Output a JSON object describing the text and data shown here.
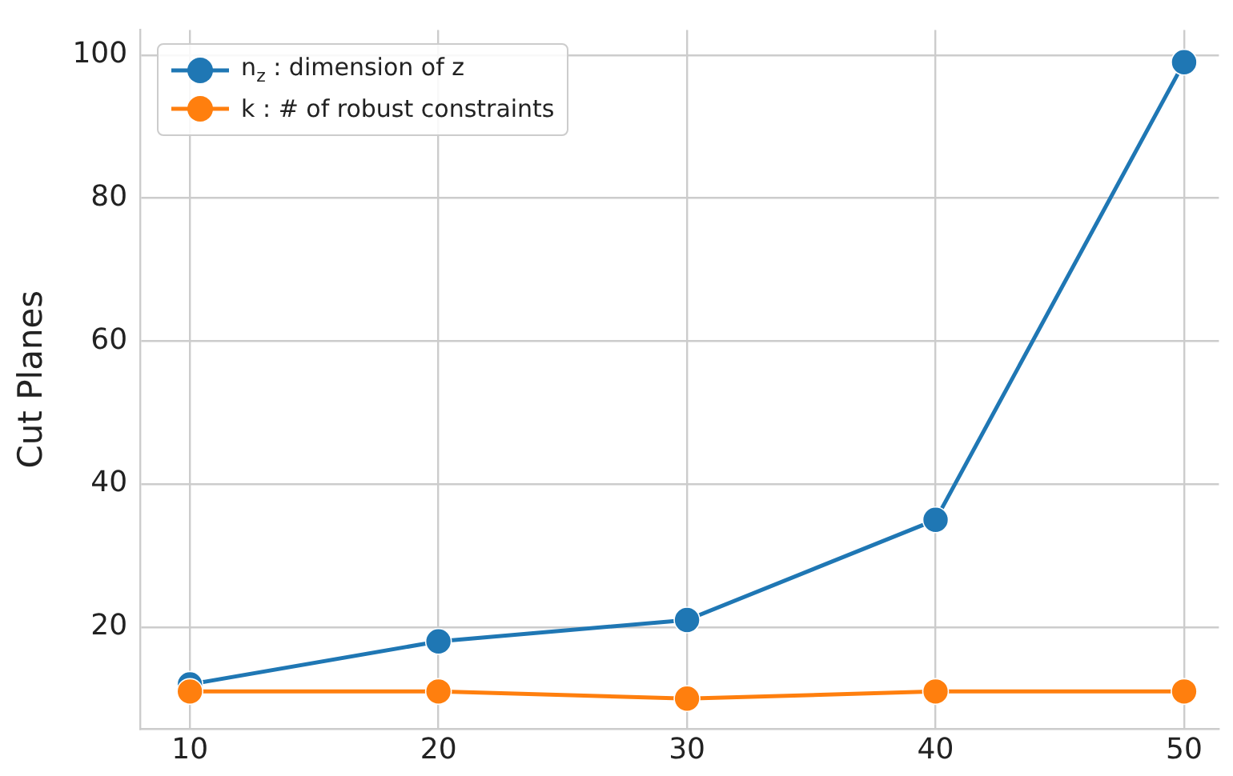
{
  "chart_data": {
    "type": "line",
    "ylabel": "Cut Planes",
    "x": [
      10,
      20,
      30,
      40,
      50
    ],
    "series": [
      {
        "name": "n$_{z}$ :  dimension of z",
        "color": "#1f77b4",
        "values": [
          12,
          18,
          21,
          35,
          99
        ]
      },
      {
        "name": "k :  # of robust constraints",
        "color": "#ff7f0e",
        "values": [
          11,
          11,
          10,
          11,
          11
        ]
      }
    ],
    "xlim": [
      8,
      51.4
    ],
    "xticks": [
      10,
      20,
      30,
      40,
      50
    ],
    "ylim": [
      5.8,
      103.5
    ],
    "yticks": [
      20,
      40,
      60,
      80,
      100
    ],
    "grid": true,
    "legend": "top left",
    "marker": "circle",
    "line_style": "solid"
  }
}
